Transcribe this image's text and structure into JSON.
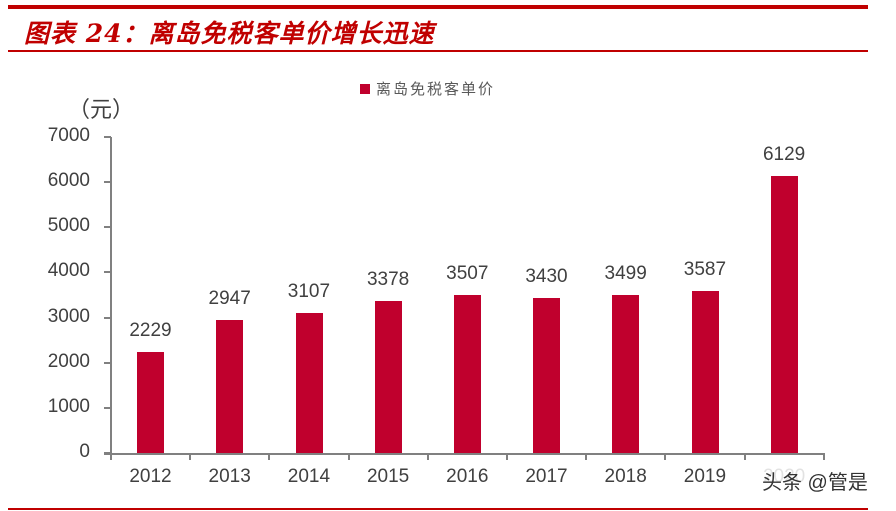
{
  "header": {
    "title": "图表 24：离岛免税客单价增长迅速"
  },
  "watermark": "头条 @管是",
  "chart_data": {
    "type": "bar",
    "title": "离岛免税客单价增长迅速",
    "figure_label": "图表 24",
    "legend": [
      "离岛免税客单价"
    ],
    "legend_position": "top",
    "ylabel": "（元）",
    "xlabel": "",
    "ylim": [
      0,
      7000
    ],
    "yticks": [
      0,
      1000,
      2000,
      3000,
      4000,
      5000,
      6000,
      7000
    ],
    "grid": false,
    "categories": [
      "2012",
      "2013",
      "2014",
      "2015",
      "2016",
      "2017",
      "2018",
      "2019",
      "2020"
    ],
    "series": [
      {
        "name": "离岛免税客单价",
        "color": "#c0002d",
        "values": [
          2229,
          2947,
          3107,
          3378,
          3507,
          3430,
          3499,
          3587,
          6129
        ]
      }
    ],
    "data_labels": [
      "2229",
      "2947",
      "3107",
      "3378",
      "3507",
      "3430",
      "3499",
      "3587",
      "6129"
    ]
  },
  "colors": {
    "accent": "#c00000",
    "bar": "#c0002d",
    "axis": "#808080",
    "text": "#404040"
  }
}
